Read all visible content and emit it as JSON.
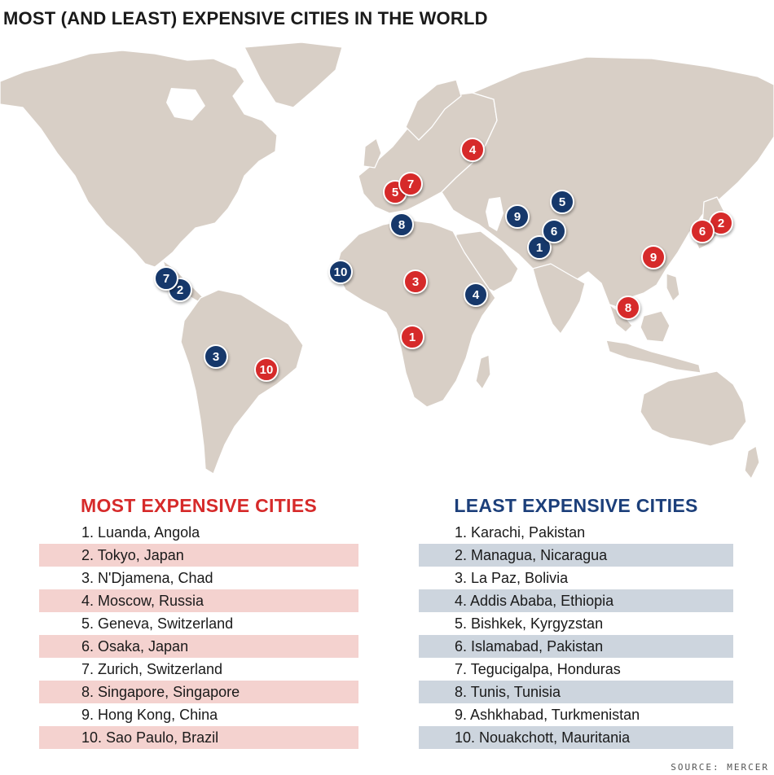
{
  "title": "MOST (AND LEAST) EXPENSIVE CITIES IN THE WORLD",
  "colors": {
    "most": "#d62a2a",
    "least": "#16386b",
    "land": "#d8cfc6"
  },
  "map_markers": {
    "most": [
      {
        "rank": "1",
        "city": "Luanda"
      },
      {
        "rank": "2",
        "city": "Tokyo"
      },
      {
        "rank": "3",
        "city": "N'Djamena"
      },
      {
        "rank": "4",
        "city": "Moscow"
      },
      {
        "rank": "5",
        "city": "Geneva"
      },
      {
        "rank": "6",
        "city": "Osaka"
      },
      {
        "rank": "7",
        "city": "Zurich"
      },
      {
        "rank": "8",
        "city": "Singapore"
      },
      {
        "rank": "9",
        "city": "Hong Kong"
      },
      {
        "rank": "10",
        "city": "Sao Paulo"
      }
    ],
    "least": [
      {
        "rank": "1",
        "city": "Karachi"
      },
      {
        "rank": "2",
        "city": "Managua"
      },
      {
        "rank": "3",
        "city": "La Paz"
      },
      {
        "rank": "4",
        "city": "Addis Ababa"
      },
      {
        "rank": "5",
        "city": "Bishkek"
      },
      {
        "rank": "6",
        "city": "Islamabad"
      },
      {
        "rank": "7",
        "city": "Tegucigalpa"
      },
      {
        "rank": "8",
        "city": "Tunis"
      },
      {
        "rank": "9",
        "city": "Ashkhabad"
      },
      {
        "rank": "10",
        "city": "Nouakchott"
      }
    ]
  },
  "most_expensive": {
    "heading": "MOST EXPENSIVE CITIES",
    "items": [
      "1. Luanda, Angola",
      "2. Tokyo, Japan",
      "3. N'Djamena, Chad",
      "4. Moscow, Russia",
      "5. Geneva, Switzerland",
      "6. Osaka, Japan",
      "7. Zurich, Switzerland",
      "8. Singapore, Singapore",
      "9. Hong Kong, China",
      "10. Sao Paulo, Brazil"
    ]
  },
  "least_expensive": {
    "heading": "LEAST EXPENSIVE CITIES",
    "items": [
      "1. Karachi, Pakistan",
      "2. Managua, Nicaragua",
      "3. La Paz, Bolivia",
      "4. Addis Ababa, Ethiopia",
      "5. Bishkek, Kyrgyzstan",
      "6. Islamabad, Pakistan",
      "7. Tegucigalpa, Honduras",
      "8. Tunis, Tunisia",
      "9. Ashkhabad, Turkmenistan",
      "10. Nouakchott, Mauritania"
    ]
  },
  "source": "SOURCE: MERCER"
}
